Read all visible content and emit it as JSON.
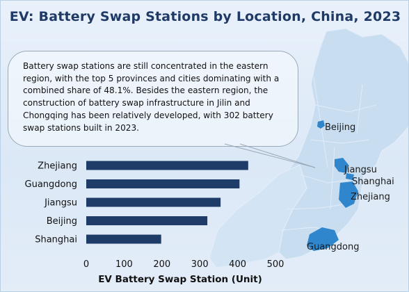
{
  "title": "EV: Battery Swap Stations by Location, China, 2023",
  "annotation": "Battery swap stations are still concentrated in the eastern region, with the top 5 provinces and cities dominating with a combined share of 48.1%. Besides the eastern region, the construction of battery swap infrastructure in Jilin and Chongqing has been relatively developed, with 302 battery swap stations built in 2023.",
  "map_labels": [
    "Beijing",
    "Jiangsu",
    "Shanghai",
    "Zhejiang",
    "Guangdong"
  ],
  "colors": {
    "bar": "#1f3c68",
    "title": "#1f3a67",
    "map_land": "#c6dcf0",
    "map_highlight": "#2f86cc",
    "background": "#e6eff9"
  },
  "chart_data": {
    "type": "bar",
    "orientation": "horizontal",
    "categories": [
      "Zhejiang",
      "Guangdong",
      "Jiangsu",
      "Beijing",
      "Shanghai"
    ],
    "values": [
      428,
      405,
      355,
      320,
      198
    ],
    "xlabel": "EV Battery Swap Station (Unit)",
    "ylabel": "",
    "xlim": [
      0,
      500
    ],
    "xticks": [
      0,
      100,
      200,
      300,
      400,
      500
    ],
    "grid": false,
    "legend": "none"
  }
}
